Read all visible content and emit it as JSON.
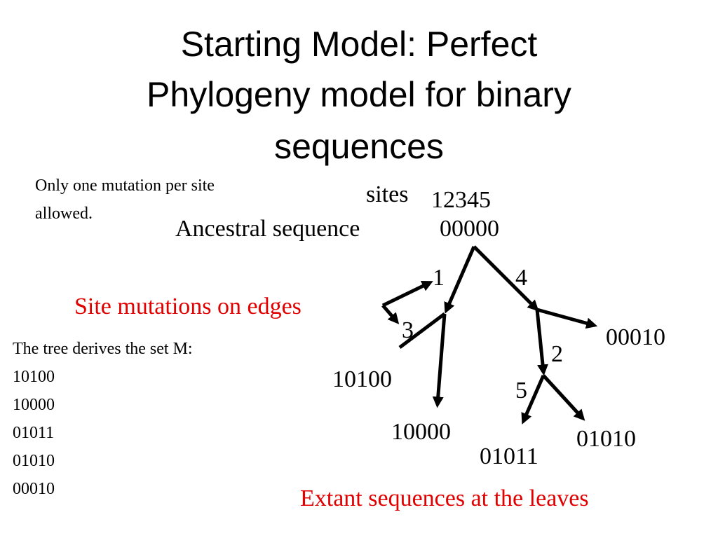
{
  "title": {
    "lines": [
      "Starting Model: Perfect",
      "Phylogeny model for binary",
      "sequences"
    ]
  },
  "note": {
    "lines": [
      "Only one mutation per site",
      "allowed."
    ]
  },
  "tree": {
    "sites_label": "sites",
    "sites": "12345",
    "ancestral_label": "Ancestral sequence",
    "ancestral": "00000",
    "edge_labels": [
      "1",
      "4",
      "3",
      "2",
      "5"
    ],
    "leaves": [
      "10100",
      "10000",
      "01011",
      "01010",
      "00010"
    ]
  },
  "annotations": {
    "edges": "Site mutations on edges",
    "leaves": "Extant sequences at the leaves"
  },
  "set": {
    "heading": "The tree derives the set M:",
    "items": [
      "10100",
      "10000",
      "01011",
      "01010",
      "00010"
    ]
  }
}
